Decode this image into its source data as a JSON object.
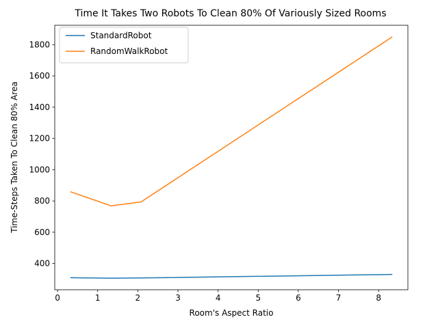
{
  "chart_data": {
    "type": "line",
    "title": "Time It Takes Two Robots To Clean 80% Of Variously Sized Rooms",
    "xlabel": "Room's Aspect Ratio",
    "ylabel": "Time-Steps Taken To Clean 80% Area",
    "xlim": [
      -0.07,
      8.73
    ],
    "ylim": [
      232,
      1924
    ],
    "xticks": [
      0,
      1,
      2,
      3,
      4,
      5,
      6,
      7,
      8
    ],
    "yticks": [
      400,
      600,
      800,
      1000,
      1200,
      1400,
      1600,
      1800
    ],
    "grid": false,
    "legend_position": "upper left",
    "series": [
      {
        "name": "StandardRobot",
        "color": "#1f77b4",
        "x": [
          0.33,
          1.33,
          2.08,
          8.33
        ],
        "y": [
          309,
          306,
          307,
          330
        ]
      },
      {
        "name": "RandomWalkRobot",
        "color": "#ff7f0e",
        "x": [
          0.33,
          1.33,
          2.08,
          8.33
        ],
        "y": [
          858,
          769,
          794,
          1848
        ]
      }
    ]
  }
}
